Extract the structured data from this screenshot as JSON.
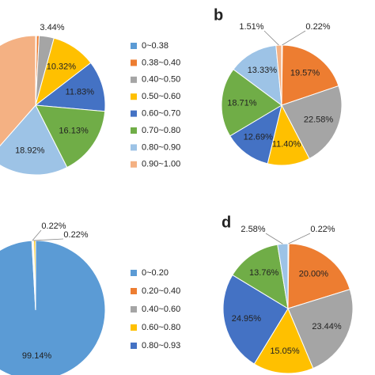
{
  "chart_data": [
    {
      "type": "pie",
      "categories": [
        "0~0.38",
        "0.38~0.40",
        "0.40~0.50",
        "0.50~0.60",
        "0.60~0.70",
        "0.70~0.80",
        "0.80~0.90",
        "0.90~1.00"
      ],
      "values": [
        0.22,
        0.6,
        3.44,
        10.32,
        11.83,
        16.13,
        18.92,
        38.54
      ],
      "value_labels": [
        null,
        null,
        "3.44%",
        "10.32%",
        "11.83%",
        "16.13%",
        "18.92%",
        null
      ],
      "colors": [
        "#5b9bd5",
        "#ed7d31",
        "#a5a5a5",
        "#ffc000",
        "#4472c4",
        "#70ad47",
        "#9dc3e6",
        "#f4b183"
      ],
      "legend": true
    },
    {
      "type": "pie",
      "panel_label": "b",
      "values": [
        0.22,
        19.57,
        22.58,
        11.4,
        12.69,
        18.71,
        13.33,
        1.51
      ],
      "value_labels": [
        "0.22%",
        "19.57%",
        "22.58%",
        "11.40%",
        "12.69%",
        "18.71%",
        "13.33%",
        "1.51%"
      ],
      "colors": [
        "#5b9bd5",
        "#ed7d31",
        "#a5a5a5",
        "#ffc000",
        "#4472c4",
        "#70ad47",
        "#9dc3e6",
        "#f4b183"
      ],
      "legend": false
    },
    {
      "type": "pie",
      "categories": [
        "0~0.20",
        "0.20~0.40",
        "0.40~0.60",
        "0.60~0.80",
        "0.80~0.93"
      ],
      "values": [
        99.14,
        0.22,
        0.22,
        0.42,
        0.0
      ],
      "value_labels": [
        "99.14%",
        "0.22%",
        "0.22%",
        null,
        null
      ],
      "colors": [
        "#5b9bd5",
        "#ed7d31",
        "#a5a5a5",
        "#ffc000",
        "#4472c4"
      ],
      "legend": true
    },
    {
      "type": "pie",
      "panel_label": "d",
      "values": [
        0.22,
        20.0,
        23.44,
        15.05,
        24.95,
        13.76,
        2.58
      ],
      "value_labels": [
        "0.22%",
        "20.00%",
        "23.44%",
        "15.05%",
        "24.95%",
        "13.76%",
        "2.58%"
      ],
      "colors": [
        "#5b9bd5",
        "#ed7d31",
        "#a5a5a5",
        "#ffc000",
        "#4472c4",
        "#70ad47",
        "#9dc3e6"
      ],
      "legend": false
    }
  ]
}
